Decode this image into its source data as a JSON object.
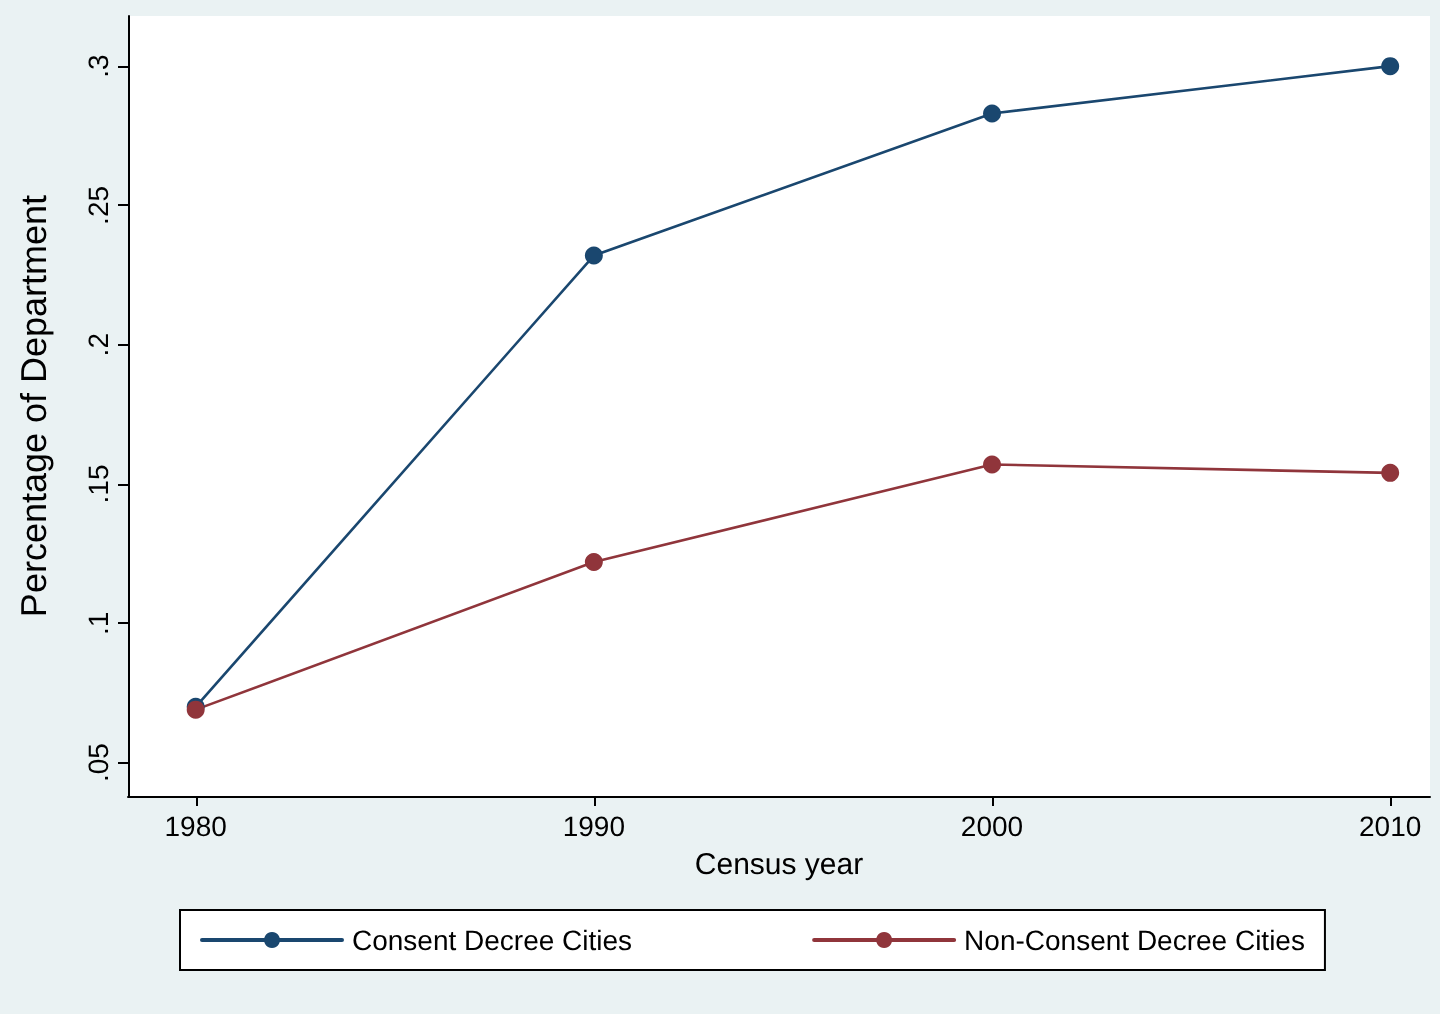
{
  "chart_data": {
    "type": "line",
    "xlabel": "Census year",
    "ylabel": "Percentage of Department",
    "x": [
      1980,
      1990,
      2000,
      2010
    ],
    "series": [
      {
        "name": "Consent Decree Cities",
        "color": "#1a476f",
        "values": [
          0.07,
          0.232,
          0.283,
          0.3
        ]
      },
      {
        "name": "Non-Consent Decree Cities",
        "color": "#90353b",
        "values": [
          0.069,
          0.122,
          0.157,
          0.154
        ]
      }
    ],
    "xlim": [
      1978.3,
      2011
    ],
    "xticks": [
      1980,
      1990,
      2000,
      2010
    ],
    "ylim": [
      0.038,
      0.318
    ],
    "yticks": [
      {
        "value": 0.05,
        "label": ".05"
      },
      {
        "value": 0.1,
        "label": ".1"
      },
      {
        "value": 0.15,
        "label": ".15"
      },
      {
        "value": 0.2,
        "label": ".2"
      },
      {
        "value": 0.25,
        "label": ".25"
      },
      {
        "value": 0.3,
        "label": ".3"
      }
    ],
    "grid": false,
    "legend": "bottom",
    "marker": "circle",
    "line_style": "solid"
  }
}
